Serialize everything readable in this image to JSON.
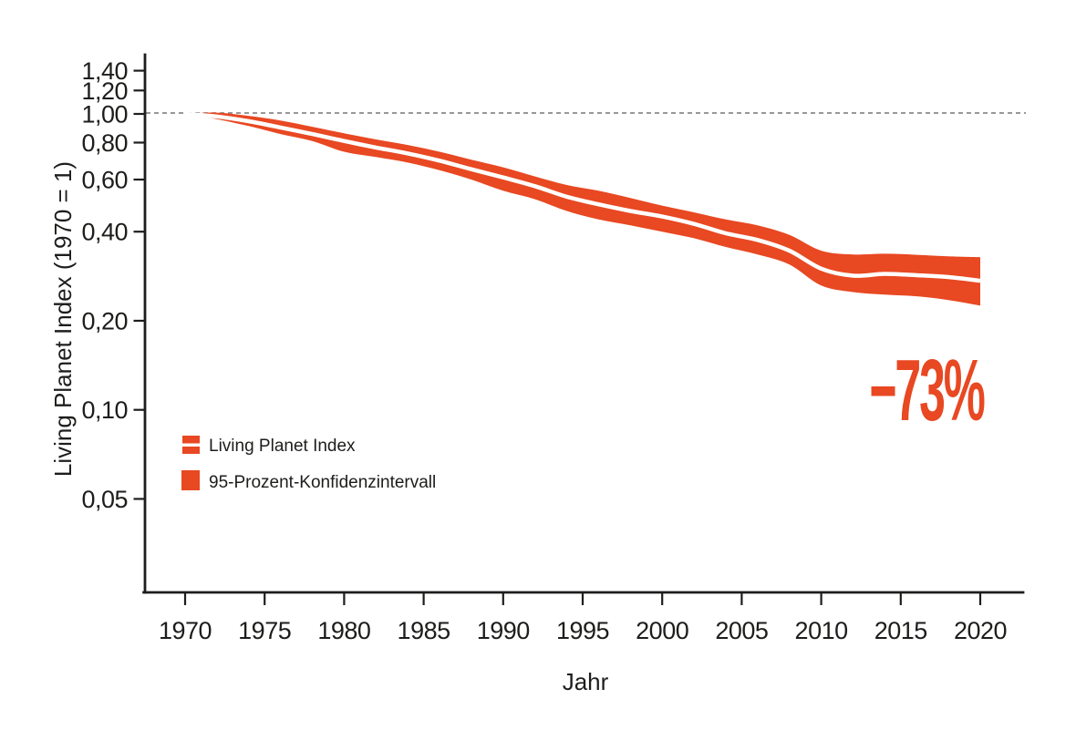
{
  "chart_data": {
    "type": "area",
    "xlabel": "Jahr",
    "ylabel": "Living Planet Index (1970 = 1)",
    "yscale": "log",
    "xlim": [
      1967.5,
      2022.7
    ],
    "ylim": [
      0.024,
      1.59
    ],
    "grid": false,
    "reference_line_value": 1.0,
    "annotation": "−73%",
    "y_ticks": [
      "1,40",
      "1,20",
      "1,00",
      "0,80",
      "0,60",
      "0,40",
      "0,20",
      "0,10",
      "0,05"
    ],
    "y_tick_values": [
      1.4,
      1.2,
      1.0,
      0.8,
      0.6,
      0.4,
      0.2,
      0.1,
      0.05
    ],
    "x_ticks": [
      1970,
      1975,
      1980,
      1985,
      1990,
      1995,
      2000,
      2005,
      2010,
      2015,
      2020
    ],
    "years": [
      1970,
      1972,
      1974,
      1976,
      1978,
      1980,
      1982,
      1984,
      1986,
      1988,
      1990,
      1992,
      1994,
      1996,
      1998,
      2000,
      2002,
      2004,
      2006,
      2008,
      2010,
      2012,
      2014,
      2016,
      2018,
      2020
    ],
    "series": [
      {
        "name": "Living Planet Index",
        "values": [
          1.0,
          0.98,
          0.945,
          0.9,
          0.855,
          0.81,
          0.77,
          0.735,
          0.695,
          0.65,
          0.61,
          0.57,
          0.525,
          0.495,
          0.47,
          0.45,
          0.425,
          0.395,
          0.375,
          0.345,
          0.3,
          0.284,
          0.288,
          0.285,
          0.281,
          0.273
        ]
      },
      {
        "name": "95-Prozent-Konfidenzintervall (untere Grenze)",
        "values": [
          1.0,
          0.96,
          0.91,
          0.855,
          0.81,
          0.745,
          0.715,
          0.685,
          0.645,
          0.6,
          0.55,
          0.515,
          0.47,
          0.44,
          0.42,
          0.4,
          0.38,
          0.355,
          0.335,
          0.31,
          0.263,
          0.25,
          0.245,
          0.242,
          0.235,
          0.225
        ]
      },
      {
        "name": "95-Prozent-Konfidenzintervall (obere Grenze)",
        "values": [
          1.0,
          1.01,
          0.985,
          0.95,
          0.905,
          0.86,
          0.82,
          0.785,
          0.745,
          0.7,
          0.66,
          0.615,
          0.575,
          0.55,
          0.52,
          0.49,
          0.465,
          0.44,
          0.42,
          0.39,
          0.345,
          0.335,
          0.337,
          0.334,
          0.33,
          0.328
        ]
      }
    ],
    "legend": [
      {
        "label": "Living Planet Index",
        "swatch": "band-with-line"
      },
      {
        "label": "95-Prozent-Konfidenzintervall",
        "swatch": "solid-square"
      }
    ],
    "legend_position": "inside-left-lower",
    "colors": {
      "accent": "#E84822",
      "line": "#FFFFFF",
      "axis": "#1D1D1B",
      "reference": "#8A8A8A"
    }
  }
}
